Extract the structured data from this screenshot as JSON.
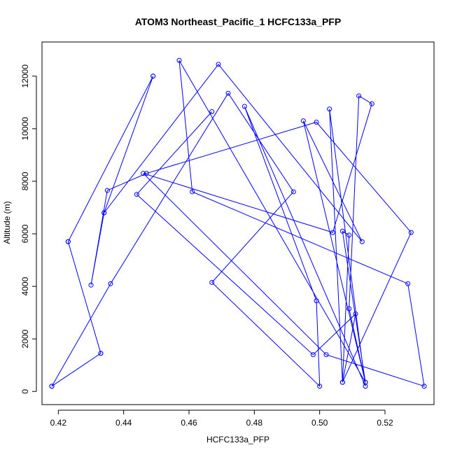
{
  "chart_data": {
    "type": "line",
    "title": "ATOM3 Northeast_Pacific_1 HCFC133a_PFP",
    "xlabel": "HCFC133a_PFP",
    "ylabel": "Altitude (m)",
    "xlim": [
      0.415,
      0.535
    ],
    "ylim": [
      -500,
      13300
    ],
    "xticks": [
      0.42,
      0.44,
      0.46,
      0.48,
      0.5,
      0.52
    ],
    "xtick_labels": [
      "0.42",
      "0.44",
      "0.46",
      "0.48",
      "0.50",
      "0.52"
    ],
    "yticks": [
      0,
      2000,
      4000,
      6000,
      8000,
      10000,
      12000
    ],
    "ytick_labels": [
      "0",
      "2000",
      "4000",
      "6000",
      "8000",
      "10000",
      "12000"
    ],
    "grid": false,
    "markers": "open-circle",
    "series": [
      {
        "color": "#0000ff",
        "points": [
          [
            0.418,
            200
          ],
          [
            0.433,
            1450
          ],
          [
            0.423,
            5700
          ],
          [
            0.449,
            12000
          ],
          [
            0.434,
            6800
          ],
          [
            0.43,
            4050
          ],
          [
            0.435,
            7650
          ],
          [
            0.447,
            8300
          ],
          [
            0.499,
            10250
          ],
          [
            0.528,
            6050
          ],
          [
            0.507,
            350
          ],
          [
            0.503,
            10750
          ],
          [
            0.514,
            200
          ],
          [
            0.477,
            10850
          ],
          [
            0.499,
            3450
          ],
          [
            0.5,
            200
          ],
          [
            0.467,
            4150
          ],
          [
            0.492,
            7600
          ],
          [
            0.472,
            11350
          ],
          [
            0.436,
            4100
          ],
          [
            0.418,
            200
          ],
          [
            0.433,
            1450
          ],
          [
            0.423,
            5700
          ],
          [
            0.449,
            12000
          ],
          [
            0.434,
            6800
          ],
          [
            0.469,
            12450
          ],
          [
            0.513,
            5700
          ],
          [
            0.495,
            10300
          ],
          [
            0.514,
            350
          ],
          [
            0.457,
            12600
          ],
          [
            0.461,
            7600
          ],
          [
            0.527,
            4100
          ],
          [
            0.532,
            200
          ],
          [
            0.502,
            1400
          ],
          [
            0.446,
            8300
          ],
          [
            0.504,
            6050
          ],
          [
            0.516,
            10950
          ],
          [
            0.512,
            11250
          ],
          [
            0.509,
            3150
          ],
          [
            0.514,
            350
          ],
          [
            0.507,
            6100
          ],
          [
            0.509,
            5950
          ],
          [
            0.507,
            350
          ],
          [
            0.511,
            2950
          ],
          [
            0.498,
            1400
          ],
          [
            0.444,
            7500
          ],
          [
            0.467,
            10650
          ]
        ]
      }
    ]
  }
}
